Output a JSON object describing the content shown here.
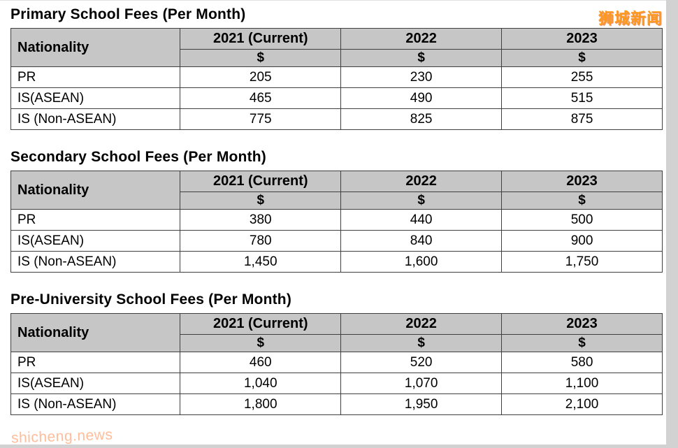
{
  "page": {
    "watermark_top": "狮城新闻",
    "watermark_bottom": "shicheng.news"
  },
  "tables": [
    {
      "title": "Primary School Fees (Per Month)",
      "nationality_header": "Nationality",
      "years": [
        "2021 (Current)",
        "2022",
        "2023"
      ],
      "currency": "$",
      "rows": [
        {
          "label": "PR",
          "values": [
            "205",
            "230",
            "255"
          ]
        },
        {
          "label": "IS(ASEAN)",
          "values": [
            "465",
            "490",
            "515"
          ]
        },
        {
          "label": "IS (Non-ASEAN)",
          "values": [
            "775",
            "825",
            "875"
          ]
        }
      ]
    },
    {
      "title": "Secondary School Fees (Per Month)",
      "nationality_header": "Nationality",
      "years": [
        "2021 (Current)",
        "2022",
        "2023"
      ],
      "currency": "$",
      "rows": [
        {
          "label": "PR",
          "values": [
            "380",
            "440",
            "500"
          ]
        },
        {
          "label": "IS(ASEAN)",
          "values": [
            "780",
            "840",
            "900"
          ]
        },
        {
          "label": "IS (Non-ASEAN)",
          "values": [
            "1,450",
            "1,600",
            "1,750"
          ]
        }
      ]
    },
    {
      "title": "Pre-University School Fees (Per Month)",
      "nationality_header": "Nationality",
      "years": [
        "2021 (Current)",
        "2022",
        "2023"
      ],
      "currency": "$",
      "rows": [
        {
          "label": "PR",
          "values": [
            "460",
            "520",
            "580"
          ]
        },
        {
          "label": "IS(ASEAN)",
          "values": [
            "1,040",
            "1,070",
            "1,100"
          ]
        },
        {
          "label": "IS (Non-ASEAN)",
          "values": [
            "1,800",
            "1,950",
            "2,100"
          ]
        }
      ]
    }
  ]
}
